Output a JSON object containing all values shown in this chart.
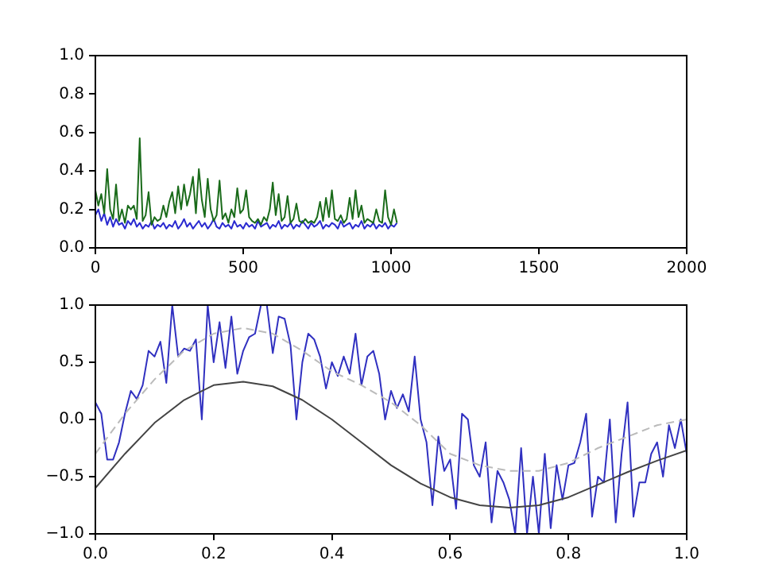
{
  "chart_data": [
    {
      "type": "line",
      "xlim": [
        0,
        2000
      ],
      "xticks": [
        0,
        500,
        1000,
        1500,
        2000
      ],
      "ylim": [
        0,
        1
      ],
      "yticks": [
        {
          "value": 0,
          "label": "0.0"
        },
        {
          "value": 0.2,
          "label": "0.2"
        },
        {
          "value": 0.4,
          "label": "0.4"
        },
        {
          "value": 0.6,
          "label": "0.6"
        },
        {
          "value": 0.8,
          "label": "0.8"
        },
        {
          "value": 1,
          "label": "1.0"
        }
      ],
      "grid": false,
      "legend": false,
      "marker": "none",
      "x": [
        0,
        10,
        20,
        30,
        40,
        50,
        60,
        70,
        80,
        90,
        100,
        110,
        120,
        130,
        140,
        150,
        160,
        170,
        180,
        190,
        200,
        210,
        220,
        230,
        240,
        250,
        260,
        270,
        280,
        290,
        300,
        310,
        320,
        330,
        340,
        350,
        360,
        370,
        380,
        390,
        400,
        410,
        420,
        430,
        440,
        450,
        460,
        470,
        480,
        490,
        500,
        510,
        520,
        530,
        540,
        550,
        560,
        570,
        580,
        590,
        600,
        610,
        620,
        630,
        640,
        650,
        660,
        670,
        680,
        690,
        700,
        710,
        720,
        730,
        740,
        750,
        760,
        770,
        780,
        790,
        800,
        810,
        820,
        830,
        840,
        850,
        860,
        870,
        880,
        890,
        900,
        910,
        920,
        930,
        940,
        950,
        960,
        970,
        980,
        990,
        1000,
        1010,
        1020
      ],
      "series": [
        {
          "color": "#1a6b1a",
          "values": [
            0.3,
            0.22,
            0.28,
            0.18,
            0.41,
            0.2,
            0.15,
            0.33,
            0.14,
            0.2,
            0.13,
            0.22,
            0.2,
            0.22,
            0.15,
            0.57,
            0.14,
            0.17,
            0.29,
            0.12,
            0.16,
            0.14,
            0.15,
            0.22,
            0.16,
            0.24,
            0.29,
            0.18,
            0.32,
            0.2,
            0.33,
            0.22,
            0.28,
            0.37,
            0.18,
            0.41,
            0.25,
            0.16,
            0.36,
            0.2,
            0.14,
            0.17,
            0.35,
            0.15,
            0.18,
            0.13,
            0.2,
            0.16,
            0.31,
            0.18,
            0.2,
            0.3,
            0.16,
            0.14,
            0.13,
            0.15,
            0.12,
            0.16,
            0.14,
            0.2,
            0.34,
            0.17,
            0.28,
            0.14,
            0.16,
            0.27,
            0.13,
            0.15,
            0.23,
            0.14,
            0.13,
            0.15,
            0.13,
            0.14,
            0.13,
            0.16,
            0.24,
            0.14,
            0.26,
            0.16,
            0.3,
            0.15,
            0.14,
            0.17,
            0.13,
            0.15,
            0.26,
            0.15,
            0.3,
            0.16,
            0.22,
            0.13,
            0.15,
            0.14,
            0.13,
            0.2,
            0.14,
            0.13,
            0.3,
            0.16,
            0.12,
            0.2,
            0.13
          ]
        },
        {
          "color": "#2a2ad0",
          "values": [
            0.17,
            0.2,
            0.14,
            0.18,
            0.12,
            0.16,
            0.11,
            0.15,
            0.12,
            0.13,
            0.1,
            0.14,
            0.12,
            0.15,
            0.11,
            0.13,
            0.1,
            0.12,
            0.11,
            0.14,
            0.1,
            0.12,
            0.11,
            0.13,
            0.1,
            0.12,
            0.11,
            0.14,
            0.1,
            0.12,
            0.15,
            0.11,
            0.13,
            0.1,
            0.12,
            0.14,
            0.11,
            0.13,
            0.1,
            0.12,
            0.15,
            0.11,
            0.1,
            0.13,
            0.11,
            0.12,
            0.1,
            0.14,
            0.11,
            0.12,
            0.1,
            0.13,
            0.11,
            0.12,
            0.1,
            0.14,
            0.11,
            0.12,
            0.13,
            0.1,
            0.12,
            0.11,
            0.14,
            0.1,
            0.12,
            0.11,
            0.13,
            0.1,
            0.12,
            0.11,
            0.14,
            0.12,
            0.1,
            0.13,
            0.11,
            0.12,
            0.14,
            0.1,
            0.12,
            0.11,
            0.13,
            0.12,
            0.1,
            0.14,
            0.11,
            0.12,
            0.13,
            0.1,
            0.12,
            0.11,
            0.14,
            0.1,
            0.12,
            0.11,
            0.13,
            0.1,
            0.12,
            0.11,
            0.13,
            0.1,
            0.12,
            0.11,
            0.13
          ]
        }
      ]
    },
    {
      "type": "line",
      "xlim": [
        0,
        1
      ],
      "xticks": [
        {
          "value": 0,
          "label": "0.0"
        },
        {
          "value": 0.2,
          "label": "0.2"
        },
        {
          "value": 0.4,
          "label": "0.4"
        },
        {
          "value": 0.6,
          "label": "0.6"
        },
        {
          "value": 0.8,
          "label": "0.8"
        },
        {
          "value": 1,
          "label": "1.0"
        }
      ],
      "ylim": [
        -1,
        1
      ],
      "yticks": [
        {
          "value": -1,
          "label": "−1.0"
        },
        {
          "value": -0.5,
          "label": "−0.5"
        },
        {
          "value": 0,
          "label": "0.0"
        },
        {
          "value": 0.5,
          "label": "0.5"
        },
        {
          "value": 1,
          "label": "1.0"
        }
      ],
      "grid": false,
      "legend": false,
      "marker": "none",
      "series": [
        {
          "color": "#bbbbbb",
          "line_style": "dashed",
          "x": [
            0,
            0.05,
            0.1,
            0.15,
            0.2,
            0.25,
            0.3,
            0.35,
            0.4,
            0.45,
            0.5,
            0.55,
            0.6,
            0.65,
            0.7,
            0.75,
            0.8,
            0.85,
            0.9,
            0.95,
            1
          ],
          "values": [
            -0.3,
            0.05,
            0.35,
            0.6,
            0.75,
            0.8,
            0.75,
            0.6,
            0.42,
            0.3,
            0.15,
            -0.05,
            -0.3,
            -0.4,
            -0.45,
            -0.45,
            -0.38,
            -0.25,
            -0.15,
            -0.05,
            0
          ]
        },
        {
          "color": "#444444",
          "line_style": "solid",
          "x": [
            0,
            0.05,
            0.1,
            0.15,
            0.2,
            0.25,
            0.3,
            0.35,
            0.4,
            0.45,
            0.5,
            0.55,
            0.6,
            0.65,
            0.7,
            0.75,
            0.8,
            0.85,
            0.9,
            0.95,
            1
          ],
          "values": [
            -0.6,
            -0.3,
            -0.03,
            0.17,
            0.3,
            0.33,
            0.29,
            0.17,
            0,
            -0.2,
            -0.4,
            -0.56,
            -0.68,
            -0.75,
            -0.77,
            -0.75,
            -0.68,
            -0.57,
            -0.46,
            -0.36,
            -0.27
          ]
        },
        {
          "color": "#3030c0",
          "line_style": "solid",
          "x": [
            0,
            0.01,
            0.02,
            0.03,
            0.04,
            0.05,
            0.06,
            0.07,
            0.08,
            0.09,
            0.1,
            0.11,
            0.12,
            0.13,
            0.14,
            0.15,
            0.16,
            0.17,
            0.18,
            0.19,
            0.2,
            0.21,
            0.22,
            0.23,
            0.24,
            0.25,
            0.26,
            0.27,
            0.28,
            0.29,
            0.3,
            0.31,
            0.32,
            0.33,
            0.34,
            0.35,
            0.36,
            0.37,
            0.38,
            0.39,
            0.4,
            0.41,
            0.42,
            0.43,
            0.44,
            0.45,
            0.46,
            0.47,
            0.48,
            0.49,
            0.5,
            0.51,
            0.52,
            0.53,
            0.54,
            0.55,
            0.56,
            0.57,
            0.58,
            0.59,
            0.6,
            0.61,
            0.62,
            0.63,
            0.64,
            0.65,
            0.66,
            0.67,
            0.68,
            0.69,
            0.7,
            0.71,
            0.72,
            0.73,
            0.74,
            0.75,
            0.76,
            0.77,
            0.78,
            0.79,
            0.8,
            0.81,
            0.82,
            0.83,
            0.84,
            0.85,
            0.86,
            0.87,
            0.88,
            0.89,
            0.9,
            0.91,
            0.92,
            0.93,
            0.94,
            0.95,
            0.96,
            0.97,
            0.98,
            0.99,
            1
          ],
          "values": [
            0.15,
            0.05,
            -0.35,
            -0.35,
            -0.2,
            0.05,
            0.25,
            0.18,
            0.3,
            0.6,
            0.55,
            0.68,
            0.32,
            1,
            0.55,
            0.62,
            0.6,
            0.7,
            0,
            1,
            0.5,
            0.85,
            0.45,
            0.9,
            0.4,
            0.6,
            0.72,
            0.75,
            1,
            1,
            0.58,
            0.9,
            0.88,
            0.65,
            0,
            0.5,
            0.75,
            0.7,
            0.55,
            0.27,
            0.5,
            0.38,
            0.55,
            0.4,
            0.75,
            0.3,
            0.55,
            0.6,
            0.4,
            0,
            0.25,
            0.1,
            0.22,
            0.07,
            0.55,
            0,
            -0.2,
            -0.75,
            -0.15,
            -0.45,
            -0.35,
            -0.78,
            0.05,
            0,
            -0.4,
            -0.5,
            -0.2,
            -0.9,
            -0.45,
            -0.55,
            -0.7,
            -1,
            -0.25,
            -1,
            -0.5,
            -1,
            -0.3,
            -0.95,
            -0.4,
            -0.7,
            -0.4,
            -0.38,
            -0.2,
            0.05,
            -0.85,
            -0.5,
            -0.55,
            0,
            -0.9,
            -0.3,
            0.15,
            -0.85,
            -0.55,
            -0.55,
            -0.3,
            -0.2,
            -0.5,
            -0.05,
            -0.25,
            0,
            -0.3
          ]
        }
      ]
    }
  ]
}
